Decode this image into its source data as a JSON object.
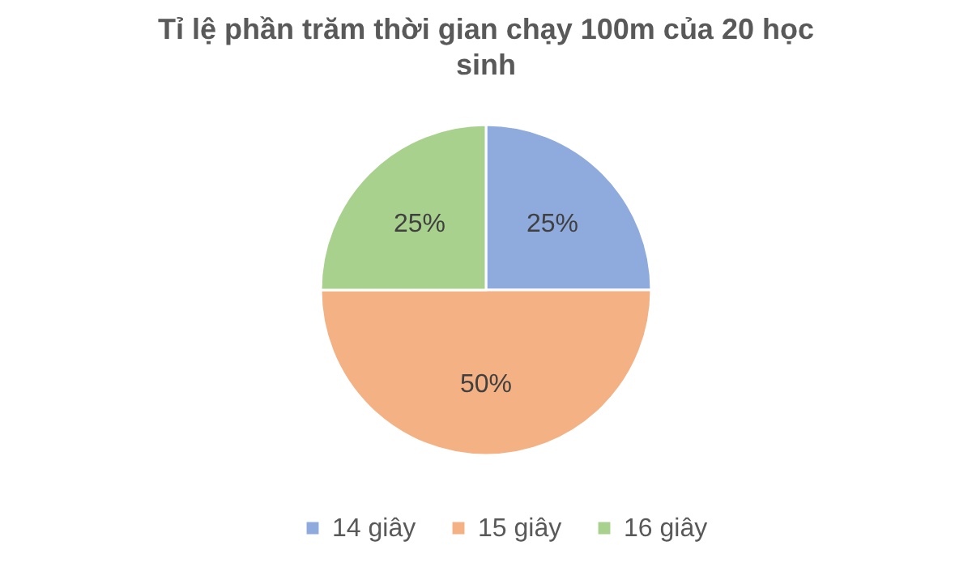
{
  "chart_data": {
    "type": "pie",
    "title": "Tỉ lệ phần trăm thời gian chạy 100m của 20 học sinh",
    "categories": [
      "14 giây",
      "15 giây",
      "16 giây"
    ],
    "values": [
      25,
      50,
      25
    ],
    "colors": [
      "#8faadc",
      "#f4b183",
      "#a9d18e"
    ],
    "value_labels": [
      "25%",
      "50%",
      "25%"
    ],
    "legend": "bottom"
  }
}
